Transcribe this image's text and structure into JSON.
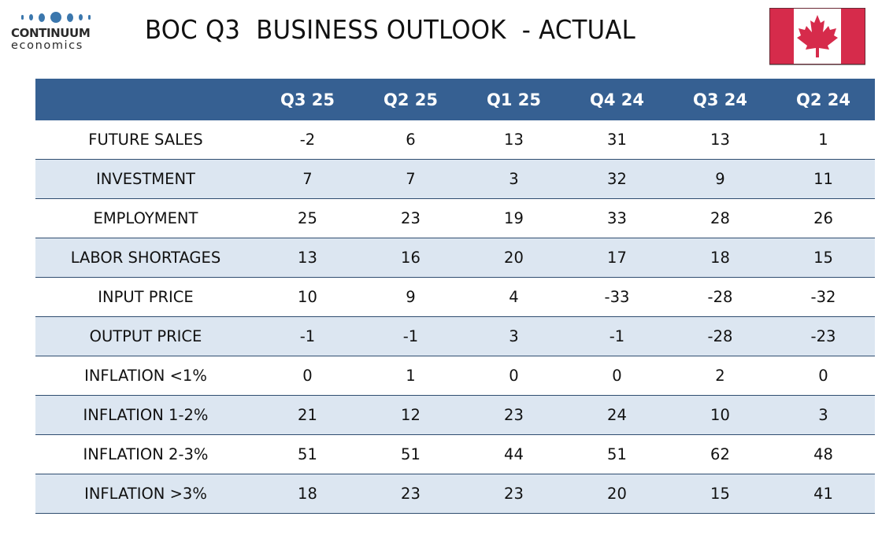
{
  "logo": {
    "name_line1": "CONTINUUM",
    "name_line2": "economics",
    "accent_color": "#3b77ad"
  },
  "title": "BOC Q3  BUSINESS OUTLOOK  - ACTUAL",
  "flag": {
    "icon": "canada-flag-icon",
    "red": "#d62b4b"
  },
  "table": {
    "header_color": "#366092",
    "alt_row_color": "#dce6f1",
    "columns": [
      "",
      "Q3 25",
      "Q2 25",
      "Q1 25",
      "Q4 24",
      "Q3 24",
      "Q2 24"
    ],
    "rows": [
      {
        "label": "FUTURE SALES",
        "values": [
          "-2",
          "6",
          "13",
          "31",
          "13",
          "1"
        ]
      },
      {
        "label": "INVESTMENT",
        "values": [
          "7",
          "7",
          "3",
          "32",
          "9",
          "11"
        ]
      },
      {
        "label": "EMPLOYMENT",
        "values": [
          "25",
          "23",
          "19",
          "33",
          "28",
          "26"
        ]
      },
      {
        "label": "LABOR SHORTAGES",
        "values": [
          "13",
          "16",
          "20",
          "17",
          "18",
          "15"
        ]
      },
      {
        "label": "INPUT PRICE",
        "values": [
          "10",
          "9",
          "4",
          "-33",
          "-28",
          "-32"
        ]
      },
      {
        "label": "OUTPUT PRICE",
        "values": [
          "-1",
          "-1",
          "3",
          "-1",
          "-28",
          "-23"
        ]
      },
      {
        "label": "INFLATION <1%",
        "values": [
          "0",
          "1",
          "0",
          "0",
          "2",
          "0"
        ]
      },
      {
        "label": "INFLATION 1-2%",
        "values": [
          "21",
          "12",
          "23",
          "24",
          "10",
          "3"
        ]
      },
      {
        "label": "INFLATION 2-3%",
        "values": [
          "51",
          "51",
          "44",
          "51",
          "62",
          "48"
        ]
      },
      {
        "label": "INFLATION >3%",
        "values": [
          "18",
          "23",
          "23",
          "20",
          "15",
          "41"
        ]
      }
    ]
  }
}
